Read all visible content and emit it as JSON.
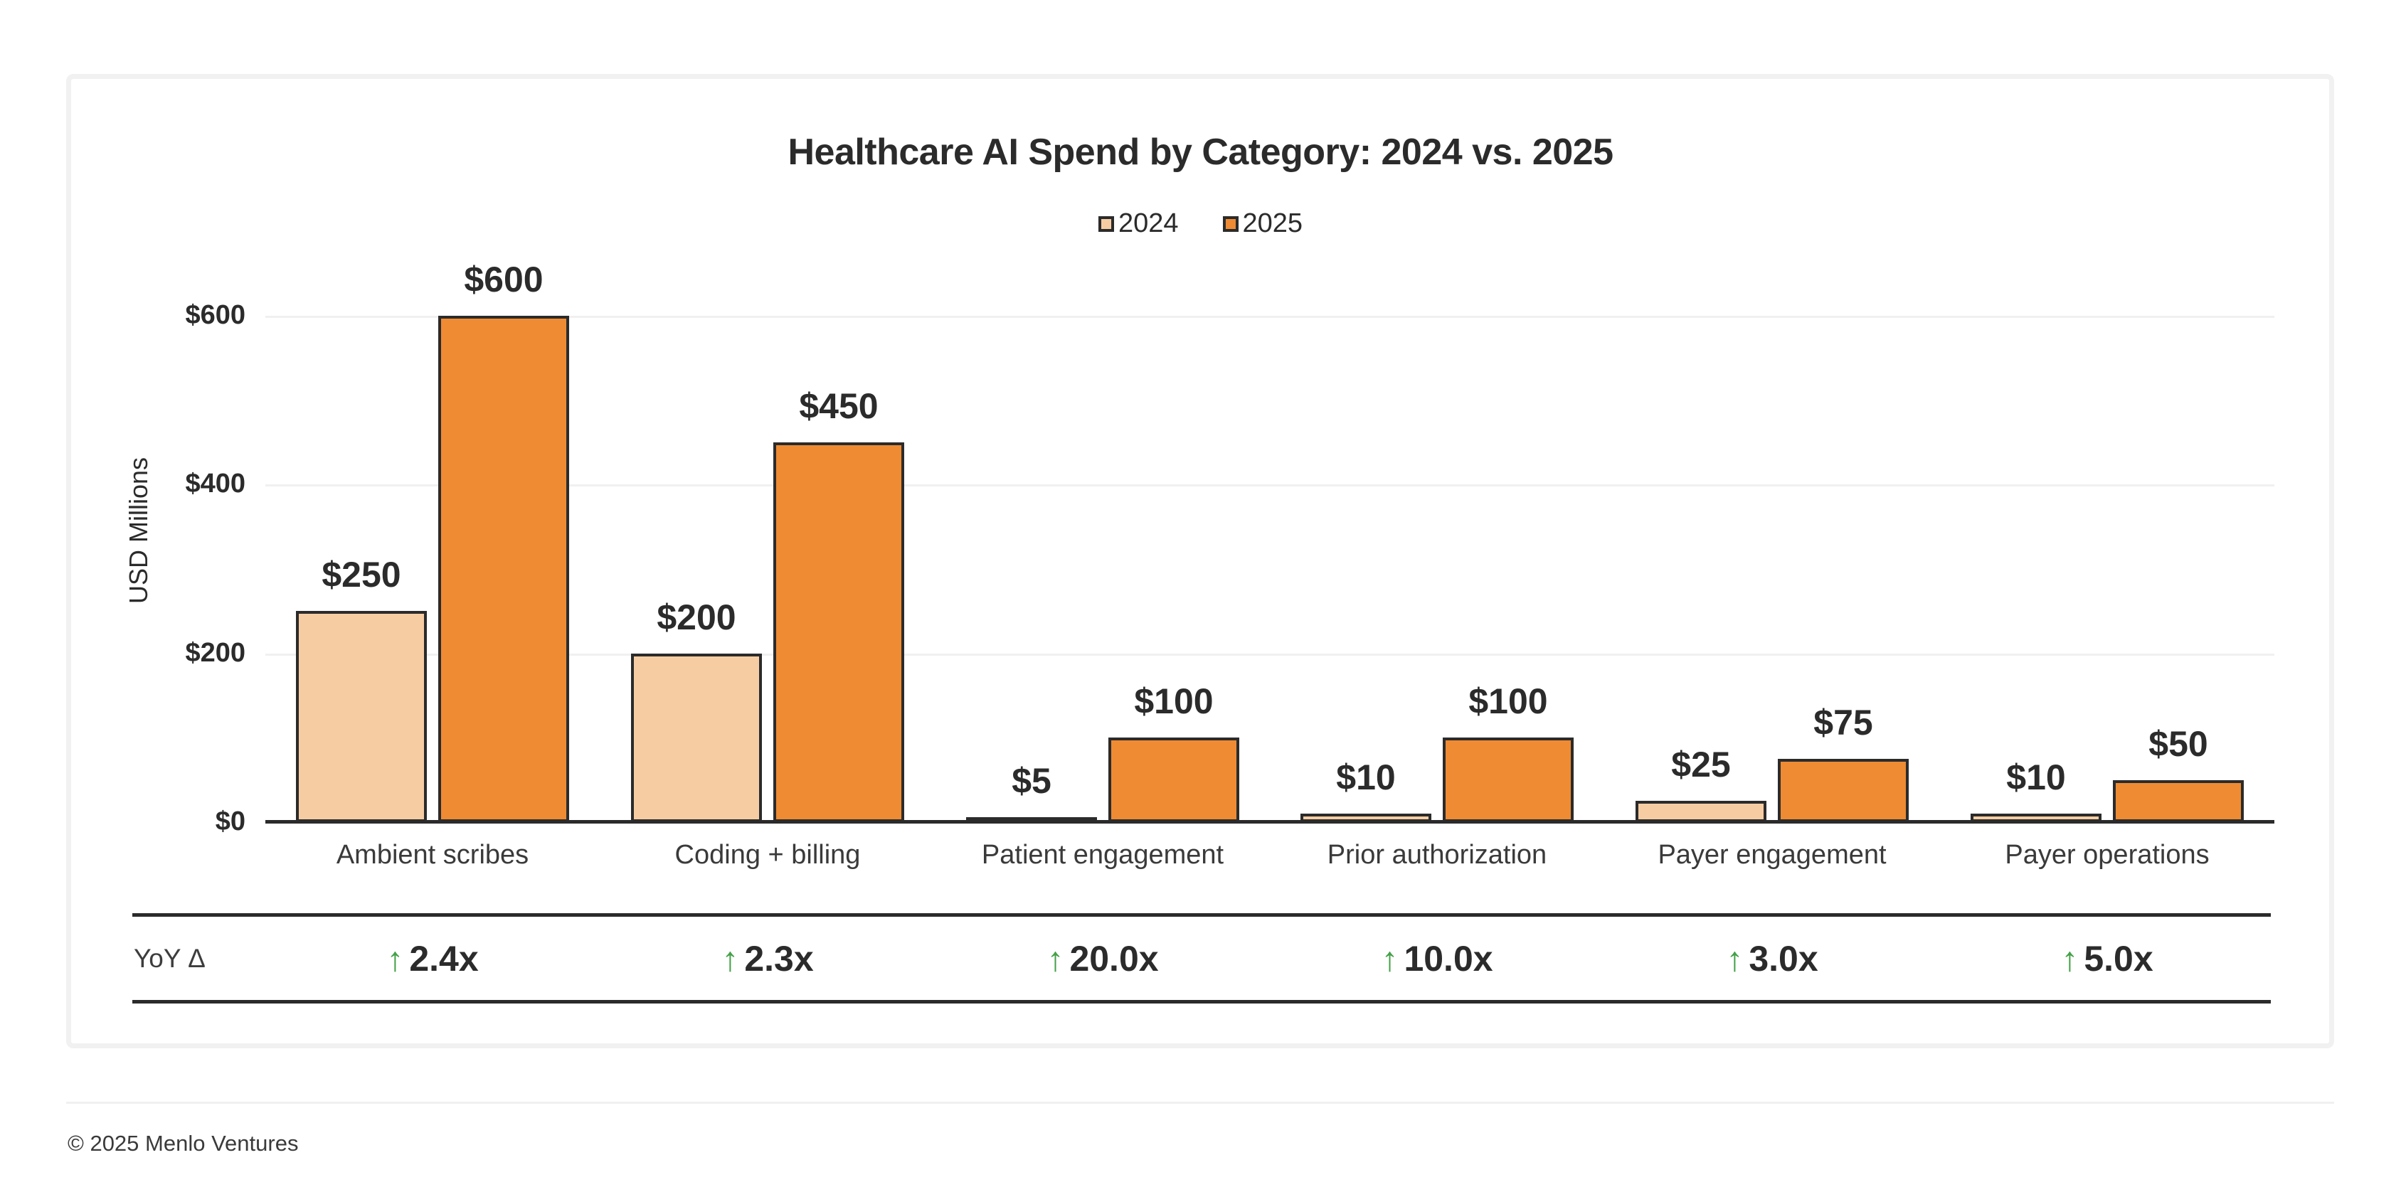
{
  "page": {
    "copyright": "© 2025 Menlo Ventures"
  },
  "chart_data": {
    "type": "bar",
    "title": "Healthcare AI Spend by Category: 2024 vs. 2025",
    "ylabel": "USD Millions",
    "xlabel": "",
    "ylim": [
      0,
      600
    ],
    "grid": "horizontal light gray lines at $200 intervals",
    "legend_position": "top center",
    "categories": [
      "Ambient scribes",
      "Coding + billing",
      "Patient engagement",
      "Prior authorization",
      "Payer engagement",
      "Payer operations"
    ],
    "series": [
      {
        "name": "2024",
        "values": [
          250,
          200,
          5,
          10,
          25,
          10
        ],
        "labels": [
          "$250",
          "$200",
          "$5",
          "$10",
          "$25",
          "$10"
        ],
        "color": "#F6CDA3"
      },
      {
        "name": "2025",
        "values": [
          600,
          450,
          100,
          100,
          75,
          50
        ],
        "labels": [
          "$600",
          "$450",
          "$100",
          "$100",
          "$75",
          "$50"
        ],
        "color": "#EF8B33"
      }
    ],
    "y_ticks": {
      "values": [
        0,
        200,
        400,
        600
      ],
      "labels": [
        "$0",
        "$200",
        "$400",
        "$600"
      ]
    },
    "yoy_row": {
      "label": "YoY Δ",
      "arrow": "↑",
      "values": [
        "2.4x",
        "2.3x",
        "20.0x",
        "10.0x",
        "3.0x",
        "5.0x"
      ]
    },
    "colors": {
      "bar_2024": "#F6CDA3",
      "bar_2025": "#EF8B33",
      "bar_outline": "#2B2B2B",
      "arrow_green": "#43A047",
      "grid_line": "#F0F0F0",
      "axis_line": "#2B2B2B",
      "text_dark": "#2B2B2B",
      "card_border": "#F1F1F1"
    }
  }
}
